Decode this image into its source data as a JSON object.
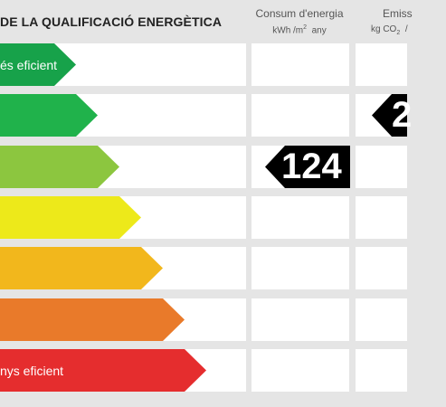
{
  "header": {
    "title": "DE LA QUALIFICACIÓ ENERGÈTICA",
    "consum_title": "Consum d'energia",
    "consum_unit_pre": "kWh /m",
    "consum_unit_sup": "2",
    "consum_unit_post": "any",
    "emiss_title": "Emiss",
    "emiss_unit_pre": "kg CO",
    "emiss_unit_sub": "2",
    "emiss_unit_post": "/"
  },
  "classes": [
    {
      "label": "és eficient",
      "color": "#17a24a",
      "fill_fraction": 0.2
    },
    {
      "label": "",
      "color": "#20b24b",
      "fill_fraction": 0.257
    },
    {
      "label": "",
      "color": "#8cc63f",
      "fill_fraction": 0.314
    },
    {
      "label": "",
      "color": "#ede91a",
      "fill_fraction": 0.371
    },
    {
      "label": "",
      "color": "#f2b71c",
      "fill_fraction": 0.428
    },
    {
      "label": "",
      "color": "#e97a2a",
      "fill_fraction": 0.485
    },
    {
      "label": "nys eficient",
      "color": "#e52d2e",
      "fill_fraction": 0.542
    }
  ],
  "indicators": {
    "consum": {
      "value": "124",
      "class_index": 2,
      "color": "#000000"
    },
    "emissions": {
      "value": "2",
      "class_index": 1,
      "color": "#000000"
    }
  }
}
